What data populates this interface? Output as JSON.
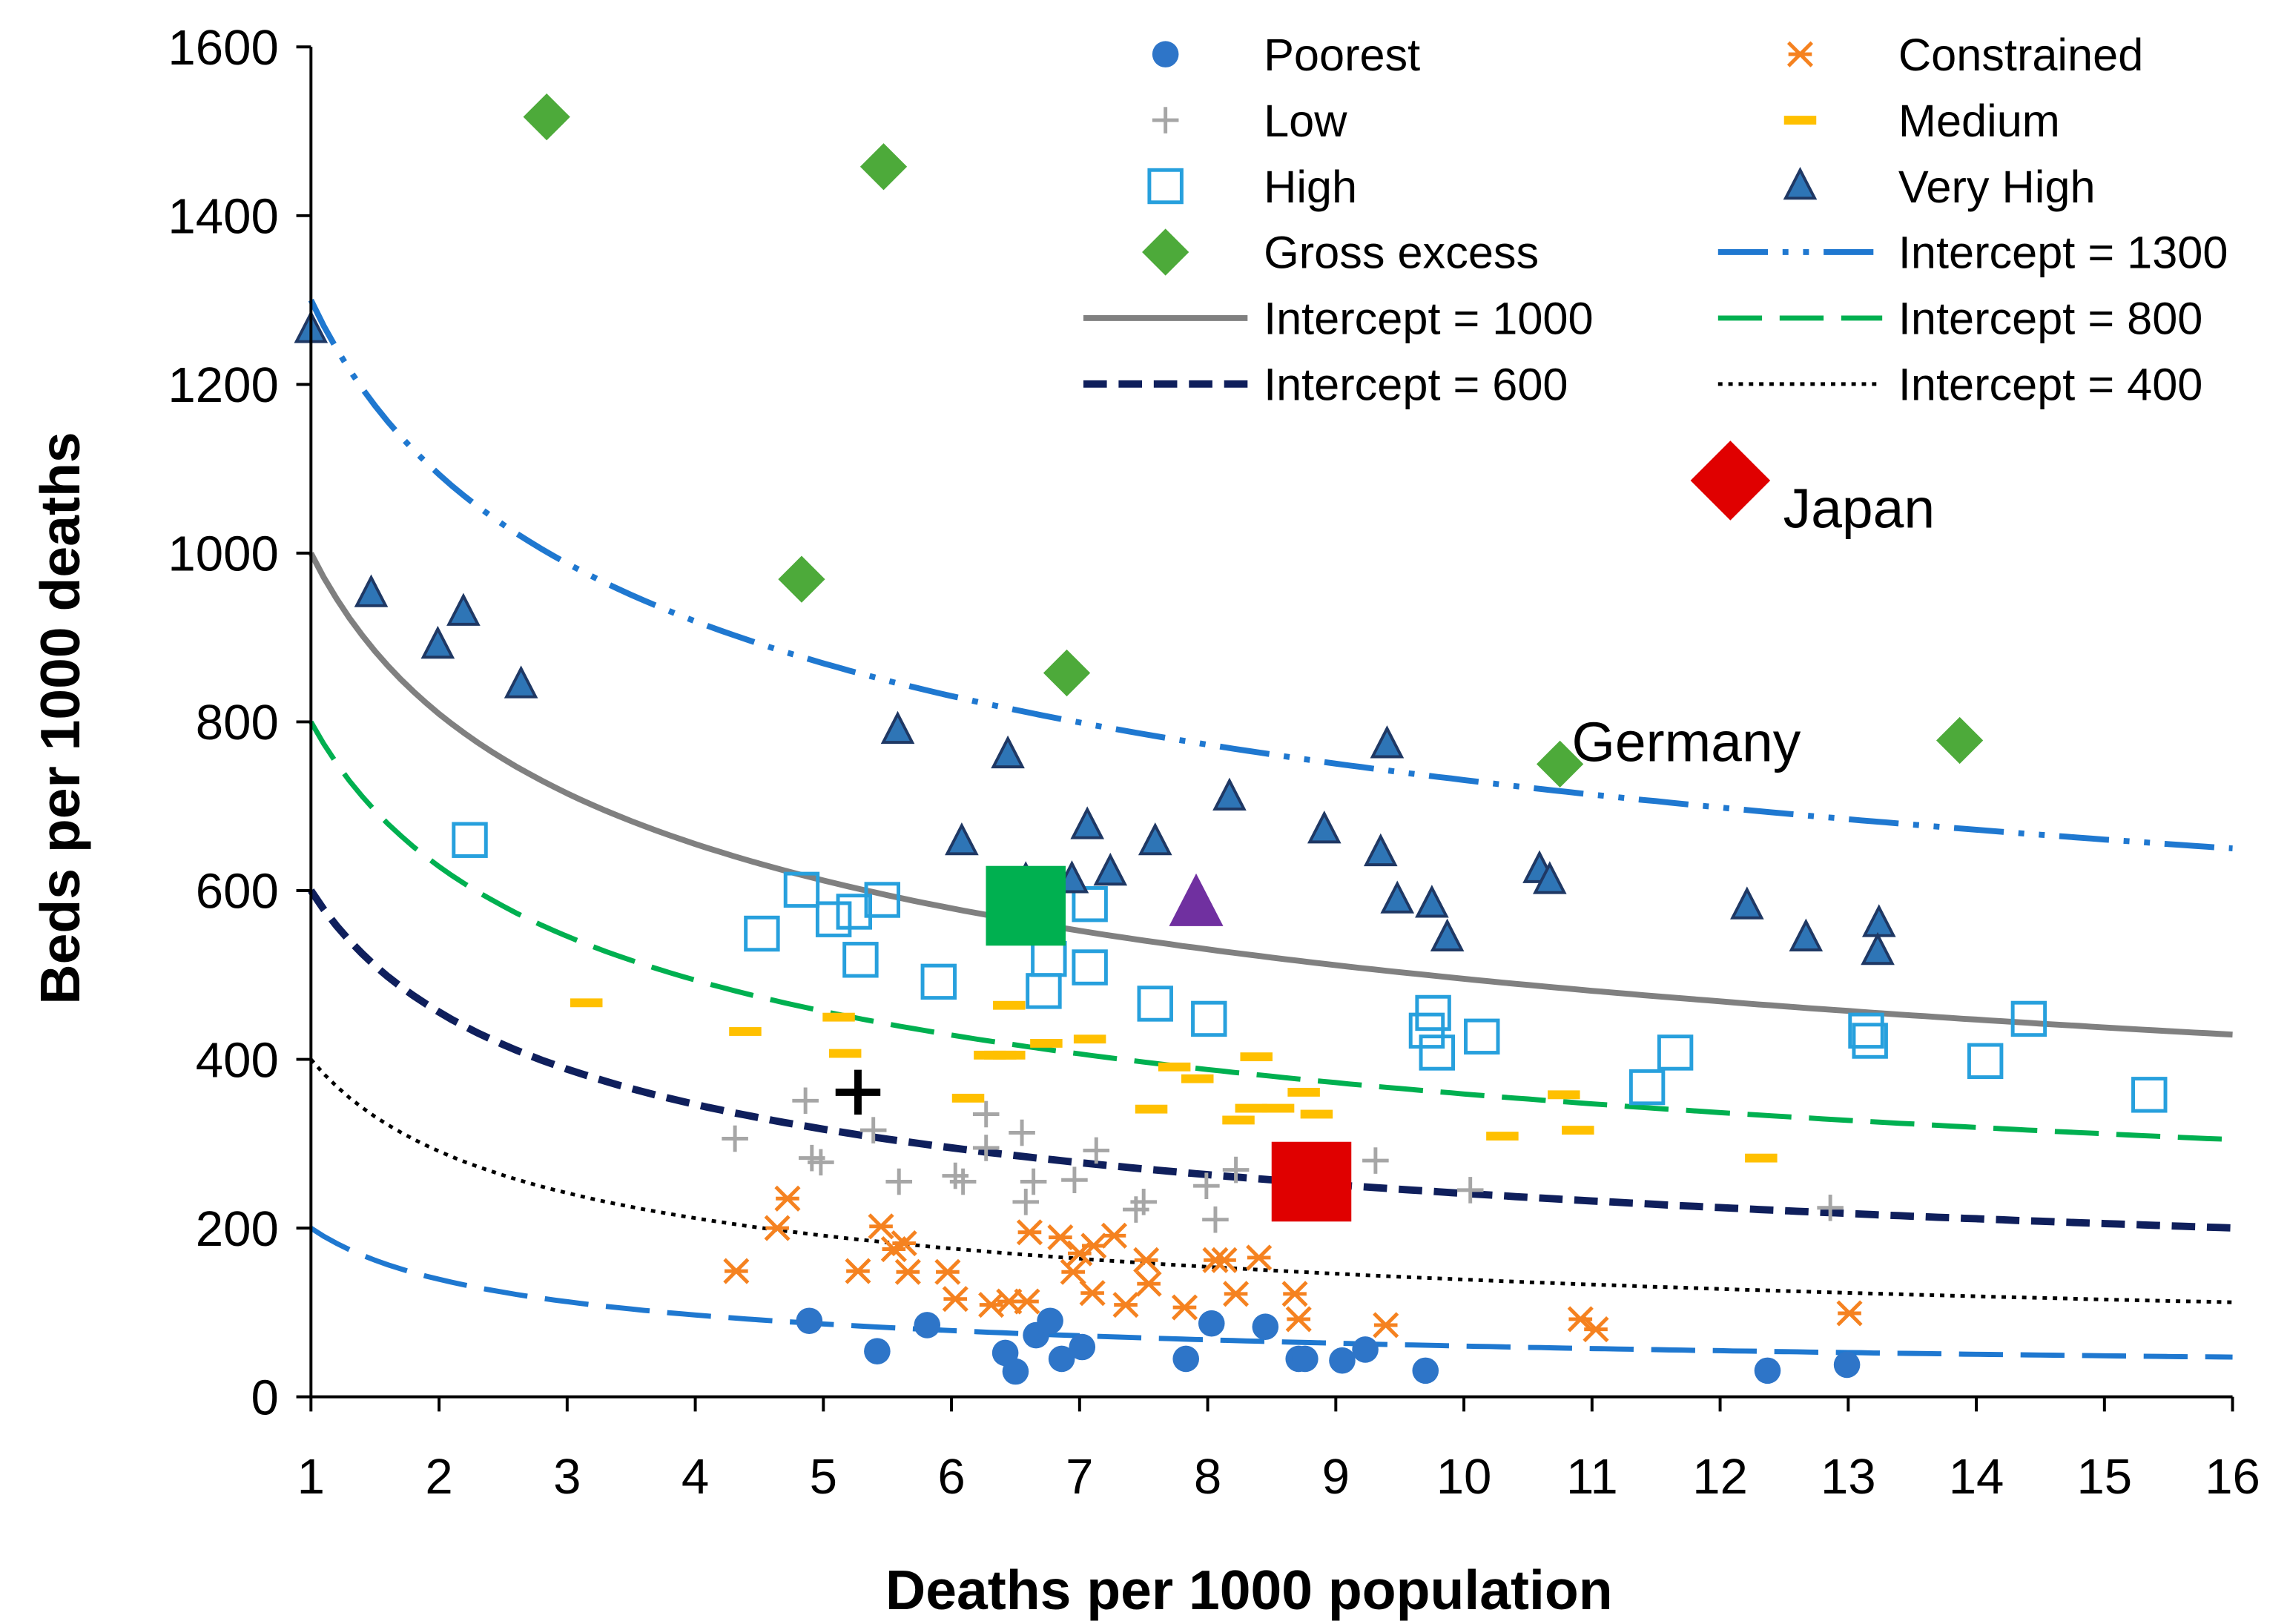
{
  "chart_data": {
    "type": "scatter",
    "xlabel": "Deaths per 1000 population",
    "ylabel": "Beds per 1000 deaths",
    "xlim": [
      1,
      16
    ],
    "ylim": [
      0,
      1600
    ],
    "xticks": [
      1,
      2,
      3,
      4,
      5,
      6,
      7,
      8,
      9,
      10,
      11,
      12,
      13,
      14,
      15,
      16
    ],
    "yticks": [
      0,
      200,
      400,
      600,
      800,
      1000,
      1200,
      1400,
      1600
    ],
    "grid": false,
    "legend_position": "top-right",
    "series": [
      {
        "name": "Poorest",
        "marker": "circle",
        "color": "#2E75C8",
        "points": [
          [
            4.89,
            90
          ],
          [
            5.42,
            54
          ],
          [
            5.81,
            85
          ],
          [
            6.42,
            52
          ],
          [
            6.5,
            30
          ],
          [
            6.66,
            73
          ],
          [
            6.77,
            90
          ],
          [
            6.86,
            45
          ],
          [
            7.02,
            59
          ],
          [
            7.83,
            45
          ],
          [
            8.03,
            87
          ],
          [
            8.45,
            83
          ],
          [
            8.71,
            45
          ],
          [
            8.76,
            45
          ],
          [
            9.05,
            43
          ],
          [
            9.23,
            56
          ],
          [
            9.7,
            31
          ],
          [
            12.37,
            31
          ],
          [
            12.99,
            38
          ]
        ]
      },
      {
        "name": "Constrained",
        "marker": "x",
        "color": "#F58220",
        "points": [
          [
            4.32,
            149
          ],
          [
            4.64,
            200
          ],
          [
            4.72,
            235
          ],
          [
            5.27,
            149
          ],
          [
            5.45,
            202
          ],
          [
            5.55,
            175
          ],
          [
            5.63,
            182
          ],
          [
            5.66,
            148
          ],
          [
            5.97,
            148
          ],
          [
            6.03,
            116
          ],
          [
            6.31,
            109
          ],
          [
            6.45,
            113
          ],
          [
            6.59,
            113
          ],
          [
            6.61,
            195
          ],
          [
            6.85,
            189
          ],
          [
            6.95,
            148
          ],
          [
            7.0,
            170
          ],
          [
            7.1,
            123
          ],
          [
            7.11,
            179
          ],
          [
            7.27,
            191
          ],
          [
            7.36,
            109
          ],
          [
            7.52,
            162
          ],
          [
            7.54,
            134
          ],
          [
            7.82,
            106
          ],
          [
            8.06,
            162
          ],
          [
            8.13,
            162
          ],
          [
            8.22,
            122
          ],
          [
            8.4,
            165
          ],
          [
            8.68,
            122
          ],
          [
            8.71,
            92
          ],
          [
            9.39,
            85
          ],
          [
            10.91,
            92
          ],
          [
            11.03,
            80
          ],
          [
            13.01,
            99
          ]
        ]
      },
      {
        "name": "Low",
        "marker": "plus",
        "color": "#A6A6A6",
        "points": [
          [
            4.31,
            306
          ],
          [
            4.86,
            351
          ],
          [
            4.91,
            283
          ],
          [
            4.98,
            278
          ],
          [
            5.39,
            316
          ],
          [
            5.59,
            255
          ],
          [
            6.03,
            262
          ],
          [
            6.09,
            255
          ],
          [
            6.27,
            295
          ],
          [
            6.27,
            335
          ],
          [
            6.55,
            313
          ],
          [
            6.58,
            231
          ],
          [
            6.64,
            255
          ],
          [
            6.96,
            257
          ],
          [
            7.13,
            292
          ],
          [
            7.44,
            222
          ],
          [
            7.5,
            231
          ],
          [
            7.99,
            250
          ],
          [
            8.06,
            210
          ],
          [
            8.22,
            269
          ],
          [
            8.61,
            257
          ],
          [
            8.75,
            276
          ],
          [
            8.96,
            228
          ],
          [
            9.31,
            280
          ],
          [
            10.05,
            245
          ],
          [
            12.86,
            224
          ]
        ]
      },
      {
        "name": "Medium",
        "marker": "dash",
        "color": "#FFC000",
        "points": [
          [
            3.15,
            467
          ],
          [
            4.39,
            433
          ],
          [
            5.12,
            450
          ],
          [
            5.17,
            407
          ],
          [
            6.13,
            354
          ],
          [
            6.3,
            405
          ],
          [
            6.38,
            405
          ],
          [
            6.45,
            405
          ],
          [
            6.45,
            464
          ],
          [
            6.74,
            419
          ],
          [
            7.08,
            424
          ],
          [
            7.56,
            341
          ],
          [
            7.74,
            391
          ],
          [
            7.92,
            377
          ],
          [
            8.24,
            328
          ],
          [
            8.34,
            342
          ],
          [
            8.38,
            403
          ],
          [
            8.55,
            342
          ],
          [
            8.75,
            361
          ],
          [
            8.85,
            335
          ],
          [
            10.3,
            309
          ],
          [
            10.78,
            358
          ],
          [
            10.89,
            316
          ],
          [
            12.32,
            283
          ]
        ]
      },
      {
        "name": "High",
        "marker": "square-open",
        "color": "#27A0DD",
        "points": [
          [
            2.24,
            660
          ],
          [
            4.52,
            549
          ],
          [
            4.83,
            601
          ],
          [
            5.08,
            566
          ],
          [
            5.24,
            575
          ],
          [
            5.46,
            589
          ],
          [
            5.29,
            518
          ],
          [
            5.9,
            492
          ],
          [
            6.76,
            519
          ],
          [
            6.72,
            481
          ],
          [
            7.08,
            584
          ],
          [
            7.08,
            509
          ],
          [
            7.59,
            466
          ],
          [
            8.01,
            448
          ],
          [
            9.71,
            434
          ],
          [
            9.76,
            455
          ],
          [
            9.79,
            408
          ],
          [
            10.14,
            427
          ],
          [
            11.43,
            367
          ],
          [
            11.65,
            408
          ],
          [
            13.14,
            434
          ],
          [
            13.17,
            422
          ],
          [
            14.07,
            398
          ],
          [
            14.41,
            448
          ],
          [
            15.35,
            358
          ]
        ]
      },
      {
        "name": "Very High",
        "marker": "triangle",
        "color": "#2E75B6",
        "points": [
          [
            1.0,
            1265
          ],
          [
            1.47,
            952
          ],
          [
            1.99,
            891
          ],
          [
            2.19,
            930
          ],
          [
            2.64,
            844
          ],
          [
            5.58,
            790
          ],
          [
            6.08,
            658
          ],
          [
            6.44,
            761
          ],
          [
            6.58,
            612
          ],
          [
            6.94,
            613
          ],
          [
            7.06,
            677
          ],
          [
            7.24,
            622
          ],
          [
            7.59,
            658
          ],
          [
            8.17,
            711
          ],
          [
            8.91,
            672
          ],
          [
            9.35,
            645
          ],
          [
            9.4,
            773
          ],
          [
            9.48,
            589
          ],
          [
            9.75,
            584
          ],
          [
            9.87,
            544
          ],
          [
            10.59,
            625
          ],
          [
            10.67,
            612
          ],
          [
            12.21,
            582
          ],
          [
            12.67,
            544
          ],
          [
            13.24,
            561
          ],
          [
            13.23,
            528
          ]
        ]
      },
      {
        "name": "Gross excess",
        "marker": "diamond",
        "color": "#4DAA3A",
        "points": [
          [
            2.84,
            1517
          ],
          [
            5.47,
            1458
          ],
          [
            4.83,
            969
          ],
          [
            6.9,
            858
          ],
          [
            10.75,
            750
          ],
          [
            13.87,
            778
          ]
        ]
      }
    ],
    "highlights": [
      {
        "marker": "diamond",
        "color": "#E00000",
        "point": [
          12.08,
          1086
        ],
        "label": "Japan"
      },
      {
        "marker": "none",
        "point": [
          10.75,
          750
        ],
        "label": "Germany"
      },
      {
        "marker": "square",
        "color": "#00B050",
        "point": [
          6.58,
          582
        ]
      },
      {
        "marker": "triangle",
        "color": "#7030A0",
        "point": [
          7.91,
          584
        ]
      },
      {
        "marker": "plus",
        "color": "#000000",
        "point": [
          5.27,
          361
        ]
      },
      {
        "marker": "square",
        "color": "#E00000",
        "point": [
          8.81,
          255
        ]
      }
    ],
    "curves": [
      {
        "name": "Intercept = 1300",
        "intercept": 1300,
        "exponent": 0.25,
        "color": "#1F78D0",
        "dash": "dashdotdot",
        "in_legend": true
      },
      {
        "name": "Intercept = 1000",
        "intercept": 1000,
        "exponent": 0.305,
        "color": "#808080",
        "dash": "solid",
        "in_legend": true
      },
      {
        "name": "Intercept = 800",
        "intercept": 800,
        "exponent": 0.348,
        "color": "#00B050",
        "dash": "longdash",
        "in_legend": true
      },
      {
        "name": "Intercept = 600",
        "intercept": 600,
        "exponent": 0.396,
        "color": "#0F1F5C",
        "dash": "dash",
        "in_legend": true
      },
      {
        "name": "Intercept = 400",
        "intercept": 400,
        "exponent": 0.459,
        "color": "#000000",
        "dash": "dot",
        "in_legend": true
      },
      {
        "name": "",
        "intercept": 200,
        "exponent": 0.522,
        "color": "#1F78D0",
        "dash": "longdash",
        "in_legend": false
      }
    ],
    "legend": [
      [
        "Poorest",
        "Constrained"
      ],
      [
        "Low",
        "Medium"
      ],
      [
        "High",
        "Very High"
      ],
      [
        "Gross excess",
        "Intercept = 1300"
      ],
      [
        "Intercept = 1000",
        "Intercept = 800"
      ],
      [
        "Intercept = 600",
        "Intercept = 400"
      ]
    ]
  }
}
